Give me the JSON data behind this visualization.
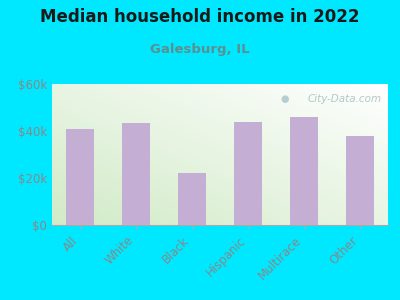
{
  "title": "Median household income in 2022",
  "subtitle": "Galesburg, IL",
  "categories": [
    "All",
    "White",
    "Black",
    "Hispanic",
    "Multirace",
    "Other"
  ],
  "values": [
    41000,
    43500,
    22000,
    44000,
    46000,
    38000
  ],
  "bar_color": "#c4aed4",
  "background_outer": "#00e8ff",
  "title_color": "#1a1a1a",
  "subtitle_color": "#5b9090",
  "tick_label_color": "#888888",
  "watermark_text": "City-Data.com",
  "ylim": [
    0,
    60000
  ],
  "yticks": [
    0,
    20000,
    40000,
    60000
  ],
  "ytick_labels": [
    "$0",
    "$20k",
    "$40k",
    "$60k"
  ]
}
